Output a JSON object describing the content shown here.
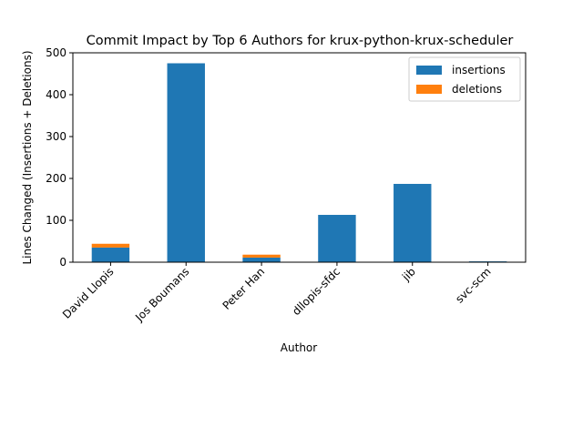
{
  "chart_data": {
    "type": "bar",
    "stacked": true,
    "title": "Commit Impact by Top 6 Authors for krux-python-krux-scheduler",
    "xlabel": "Author",
    "ylabel": "Lines Changed (Insertions + Deletions)",
    "categories": [
      "David Llopis",
      "Jos Boumans",
      "Peter Han",
      "dllopis-sfdc",
      "jib",
      "svc-scm"
    ],
    "series": [
      {
        "name": "insertions",
        "color": "#1f77b4",
        "values": [
          35,
          475,
          11,
          113,
          187,
          2
        ]
      },
      {
        "name": "deletions",
        "color": "#ff7f0e",
        "values": [
          9,
          0,
          7,
          0,
          0,
          0
        ]
      }
    ],
    "ylim": [
      0,
      500
    ],
    "yticks": [
      0,
      100,
      200,
      300,
      400,
      500
    ],
    "grid": false,
    "legend_position": "top-right"
  }
}
